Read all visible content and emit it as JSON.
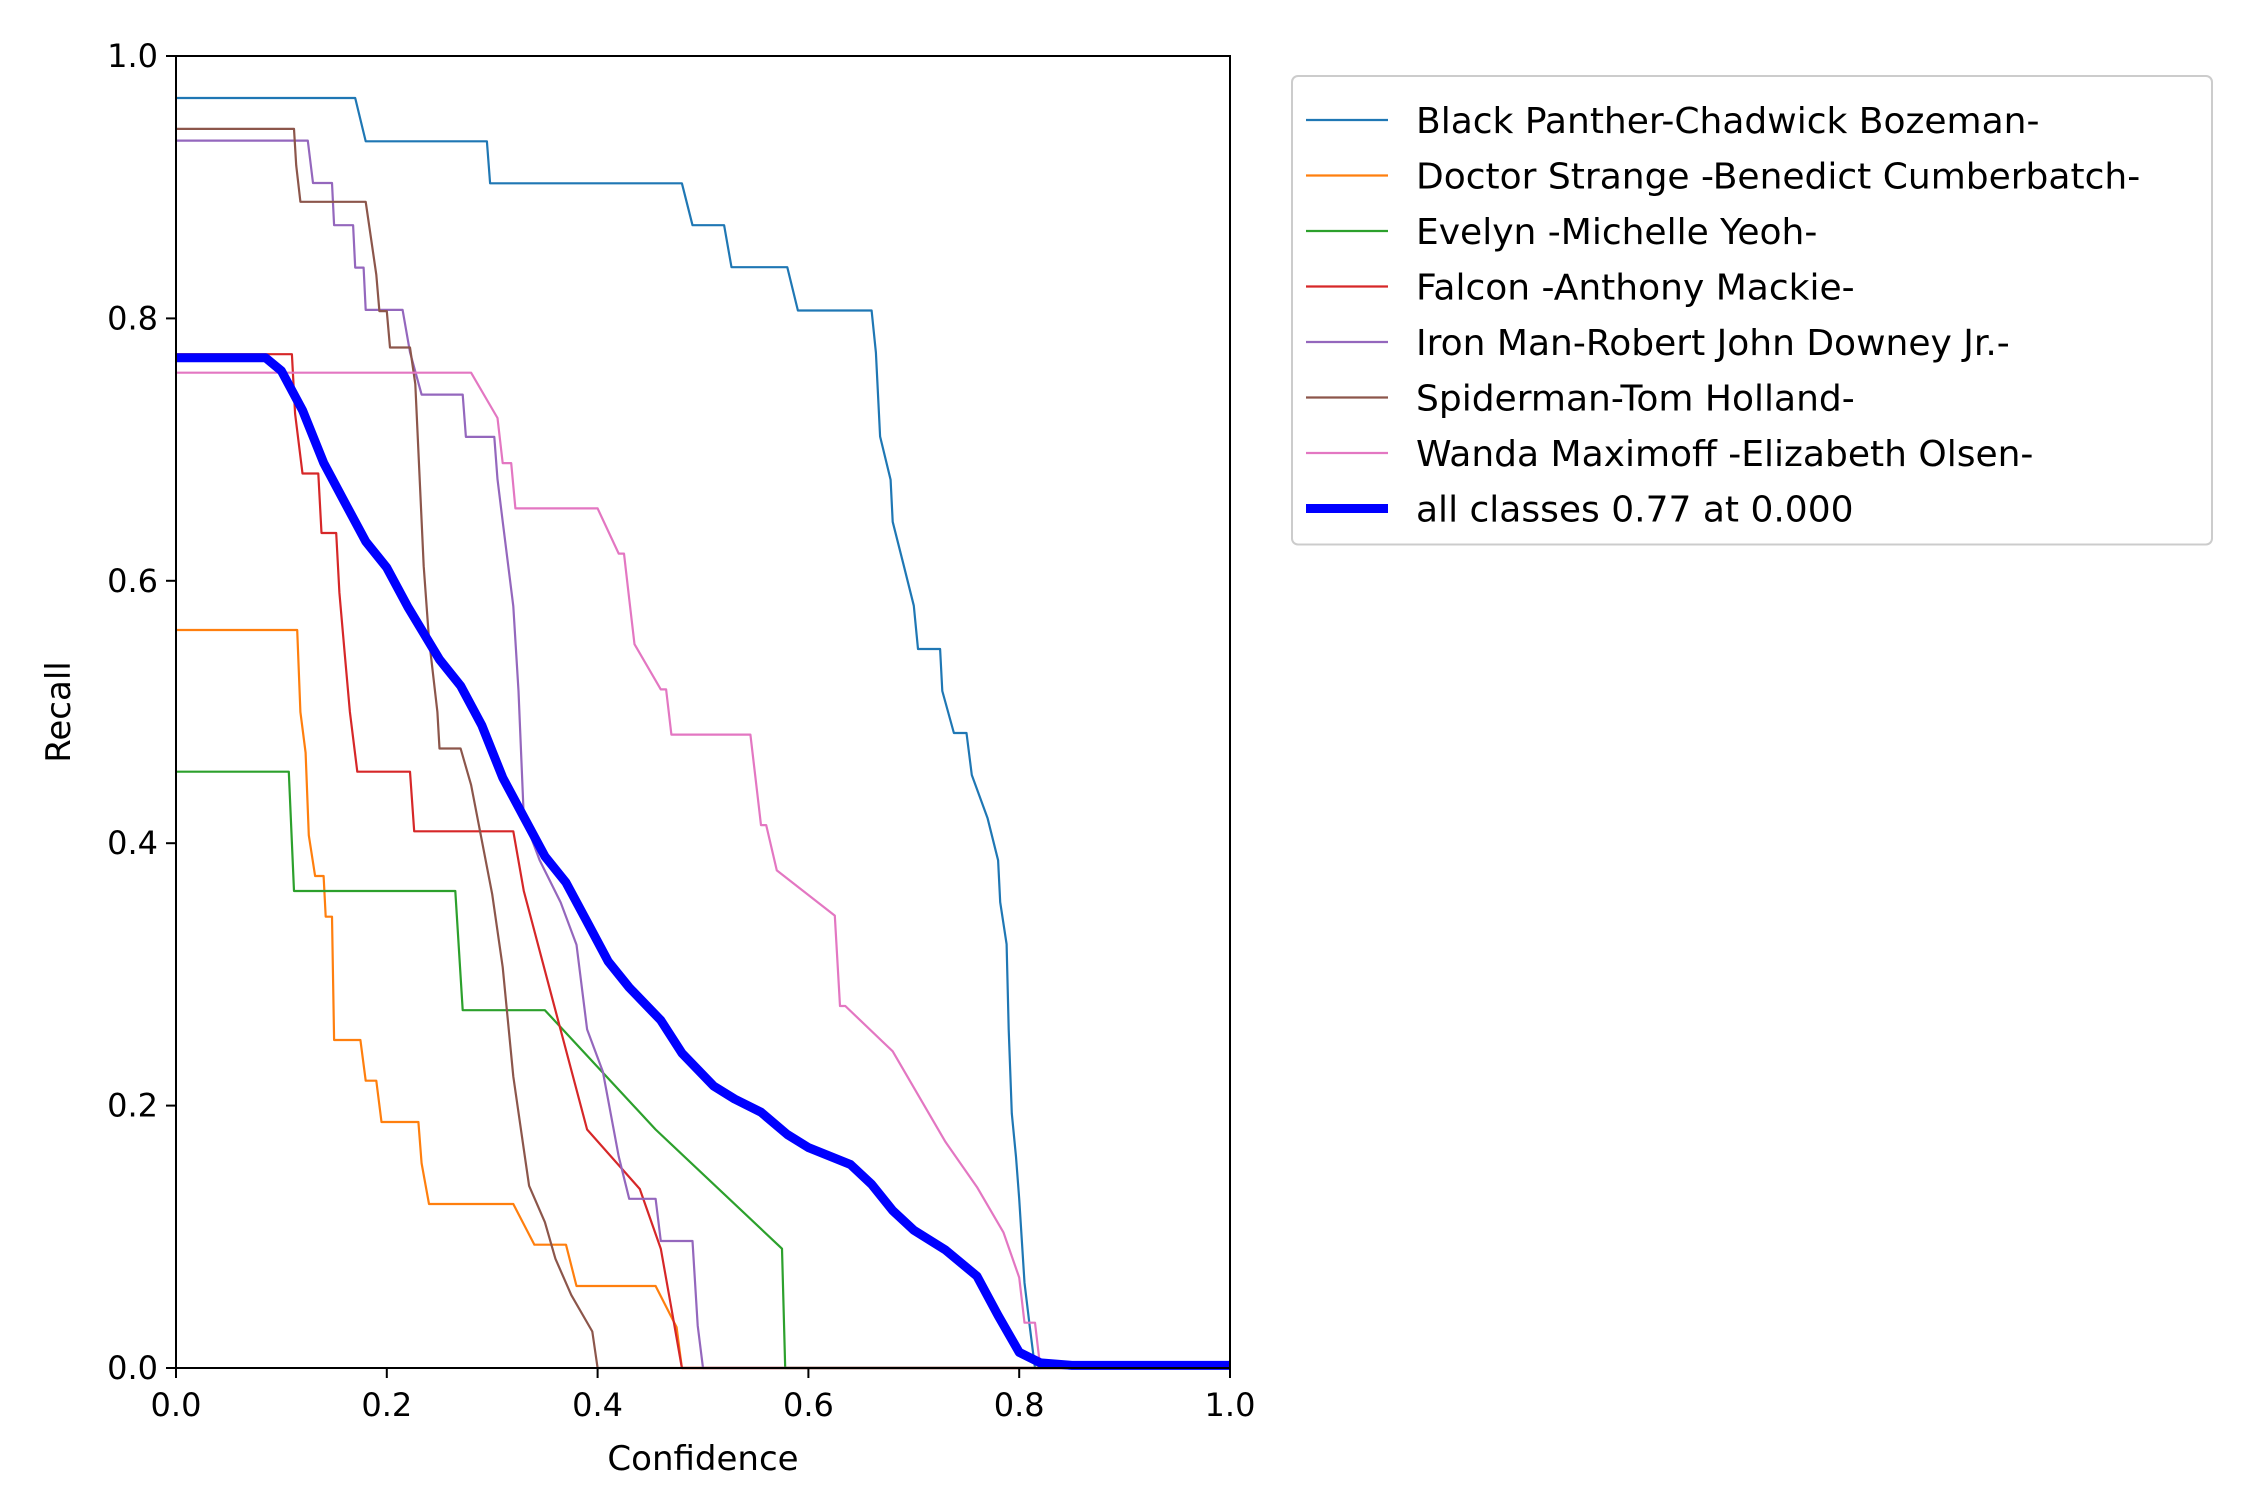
{
  "chart_data": {
    "type": "line",
    "xlabel": "Confidence",
    "ylabel": "Recall",
    "xlim": [
      0,
      1
    ],
    "ylim": [
      0,
      1
    ],
    "xticks": [
      0.0,
      0.2,
      0.4,
      0.6,
      0.8,
      1.0
    ],
    "yticks": [
      0.0,
      0.2,
      0.4,
      0.6,
      0.8,
      1.0
    ],
    "xtick_labels": [
      "0.0",
      "0.2",
      "0.4",
      "0.6",
      "0.8",
      "1.0"
    ],
    "ytick_labels": [
      "0.0",
      "0.2",
      "0.4",
      "0.6",
      "0.8",
      "1.0"
    ],
    "grid": false,
    "legend_position": "outside-top-right",
    "series": [
      {
        "name": "Black Panther-Chadwick Bozeman-",
        "color": "#1f77b4",
        "points": [
          [
            0,
            0.968
          ],
          [
            0.17,
            0.968
          ],
          [
            0.18,
            0.935
          ],
          [
            0.295,
            0.935
          ],
          [
            0.298,
            0.903
          ],
          [
            0.48,
            0.903
          ],
          [
            0.49,
            0.871
          ],
          [
            0.52,
            0.871
          ],
          [
            0.527,
            0.839
          ],
          [
            0.58,
            0.839
          ],
          [
            0.59,
            0.806
          ],
          [
            0.66,
            0.806
          ],
          [
            0.664,
            0.774
          ],
          [
            0.668,
            0.71
          ],
          [
            0.678,
            0.677
          ],
          [
            0.68,
            0.645
          ],
          [
            0.69,
            0.613
          ],
          [
            0.7,
            0.581
          ],
          [
            0.704,
            0.548
          ],
          [
            0.725,
            0.548
          ],
          [
            0.727,
            0.516
          ],
          [
            0.738,
            0.484
          ],
          [
            0.75,
            0.484
          ],
          [
            0.755,
            0.452
          ],
          [
            0.77,
            0.419
          ],
          [
            0.78,
            0.387
          ],
          [
            0.782,
            0.355
          ],
          [
            0.788,
            0.323
          ],
          [
            0.79,
            0.258
          ],
          [
            0.793,
            0.194
          ],
          [
            0.797,
            0.161
          ],
          [
            0.8,
            0.129
          ],
          [
            0.805,
            0.065
          ],
          [
            0.81,
            0.032
          ],
          [
            0.815,
            0
          ],
          [
            1.0,
            0
          ]
        ]
      },
      {
        "name": "Doctor Strange -Benedict Cumberbatch-",
        "color": "#ff7f0e",
        "points": [
          [
            0,
            0.5625
          ],
          [
            0.115,
            0.5625
          ],
          [
            0.118,
            0.5
          ],
          [
            0.123,
            0.469
          ],
          [
            0.126,
            0.406
          ],
          [
            0.132,
            0.375
          ],
          [
            0.14,
            0.375
          ],
          [
            0.142,
            0.344
          ],
          [
            0.148,
            0.344
          ],
          [
            0.15,
            0.25
          ],
          [
            0.175,
            0.25
          ],
          [
            0.18,
            0.219
          ],
          [
            0.19,
            0.219
          ],
          [
            0.195,
            0.1875
          ],
          [
            0.23,
            0.1875
          ],
          [
            0.233,
            0.156
          ],
          [
            0.24,
            0.125
          ],
          [
            0.32,
            0.125
          ],
          [
            0.34,
            0.094
          ],
          [
            0.37,
            0.094
          ],
          [
            0.38,
            0.0625
          ],
          [
            0.455,
            0.0625
          ],
          [
            0.475,
            0.031
          ],
          [
            0.48,
            0
          ],
          [
            1.0,
            0
          ]
        ]
      },
      {
        "name": "Evelyn -Michelle Yeoh-",
        "color": "#2ca02c",
        "points": [
          [
            0,
            0.4545
          ],
          [
            0.107,
            0.4545
          ],
          [
            0.112,
            0.3636
          ],
          [
            0.265,
            0.3636
          ],
          [
            0.272,
            0.2727
          ],
          [
            0.35,
            0.2727
          ],
          [
            0.455,
            0.1818
          ],
          [
            0.575,
            0.0909
          ],
          [
            0.578,
            0
          ],
          [
            1.0,
            0
          ]
        ]
      },
      {
        "name": "Falcon -Anthony Mackie-",
        "color": "#d62728",
        "points": [
          [
            0,
            0.7727
          ],
          [
            0.11,
            0.7727
          ],
          [
            0.113,
            0.7273
          ],
          [
            0.12,
            0.6818
          ],
          [
            0.135,
            0.6818
          ],
          [
            0.138,
            0.6364
          ],
          [
            0.152,
            0.6364
          ],
          [
            0.155,
            0.5909
          ],
          [
            0.16,
            0.5455
          ],
          [
            0.165,
            0.5
          ],
          [
            0.172,
            0.4545
          ],
          [
            0.222,
            0.4545
          ],
          [
            0.226,
            0.4091
          ],
          [
            0.32,
            0.4091
          ],
          [
            0.33,
            0.3636
          ],
          [
            0.36,
            0.2727
          ],
          [
            0.39,
            0.1818
          ],
          [
            0.44,
            0.1364
          ],
          [
            0.46,
            0.0909
          ],
          [
            0.47,
            0.0455
          ],
          [
            0.48,
            0
          ],
          [
            1.0,
            0
          ]
        ]
      },
      {
        "name": "Iron Man-Robert John Downey Jr.-",
        "color": "#9467bd",
        "points": [
          [
            0,
            0.9355
          ],
          [
            0.125,
            0.9355
          ],
          [
            0.13,
            0.9032
          ],
          [
            0.148,
            0.9032
          ],
          [
            0.15,
            0.871
          ],
          [
            0.168,
            0.871
          ],
          [
            0.17,
            0.8387
          ],
          [
            0.178,
            0.8387
          ],
          [
            0.18,
            0.8065
          ],
          [
            0.215,
            0.8065
          ],
          [
            0.222,
            0.7742
          ],
          [
            0.233,
            0.7419
          ],
          [
            0.272,
            0.7419
          ],
          [
            0.275,
            0.7097
          ],
          [
            0.302,
            0.7097
          ],
          [
            0.305,
            0.6774
          ],
          [
            0.31,
            0.6452
          ],
          [
            0.32,
            0.5806
          ],
          [
            0.325,
            0.5161
          ],
          [
            0.33,
            0.4194
          ],
          [
            0.345,
            0.3871
          ],
          [
            0.365,
            0.3548
          ],
          [
            0.38,
            0.3226
          ],
          [
            0.39,
            0.2581
          ],
          [
            0.405,
            0.2258
          ],
          [
            0.42,
            0.1613
          ],
          [
            0.43,
            0.129
          ],
          [
            0.455,
            0.129
          ],
          [
            0.46,
            0.0968
          ],
          [
            0.49,
            0.0968
          ],
          [
            0.495,
            0.0323
          ],
          [
            0.5,
            0
          ],
          [
            1.0,
            0
          ]
        ]
      },
      {
        "name": "Spiderman-Tom Holland-",
        "color": "#8c564b",
        "points": [
          [
            0,
            0.9444
          ],
          [
            0.112,
            0.9444
          ],
          [
            0.114,
            0.9167
          ],
          [
            0.118,
            0.8889
          ],
          [
            0.18,
            0.8889
          ],
          [
            0.185,
            0.8611
          ],
          [
            0.19,
            0.8333
          ],
          [
            0.193,
            0.8056
          ],
          [
            0.2,
            0.8056
          ],
          [
            0.203,
            0.7778
          ],
          [
            0.222,
            0.7778
          ],
          [
            0.227,
            0.75
          ],
          [
            0.235,
            0.6111
          ],
          [
            0.24,
            0.5556
          ],
          [
            0.248,
            0.5
          ],
          [
            0.25,
            0.4722
          ],
          [
            0.27,
            0.4722
          ],
          [
            0.28,
            0.4444
          ],
          [
            0.3,
            0.3611
          ],
          [
            0.31,
            0.3056
          ],
          [
            0.32,
            0.2222
          ],
          [
            0.33,
            0.1667
          ],
          [
            0.335,
            0.1389
          ],
          [
            0.35,
            0.1111
          ],
          [
            0.36,
            0.0833
          ],
          [
            0.375,
            0.0556
          ],
          [
            0.395,
            0.0278
          ],
          [
            0.4,
            0
          ],
          [
            1.0,
            0
          ]
        ]
      },
      {
        "name": "Wanda Maximoff -Elizabeth Olsen-",
        "color": "#e377c2",
        "points": [
          [
            0,
            0.7586
          ],
          [
            0.28,
            0.7586
          ],
          [
            0.305,
            0.7241
          ],
          [
            0.31,
            0.6897
          ],
          [
            0.318,
            0.6897
          ],
          [
            0.322,
            0.6552
          ],
          [
            0.4,
            0.6552
          ],
          [
            0.42,
            0.6207
          ],
          [
            0.425,
            0.6207
          ],
          [
            0.43,
            0.5862
          ],
          [
            0.435,
            0.5517
          ],
          [
            0.46,
            0.5172
          ],
          [
            0.465,
            0.5172
          ],
          [
            0.47,
            0.4828
          ],
          [
            0.545,
            0.4828
          ],
          [
            0.55,
            0.4483
          ],
          [
            0.555,
            0.4138
          ],
          [
            0.56,
            0.4138
          ],
          [
            0.57,
            0.3793
          ],
          [
            0.625,
            0.3448
          ],
          [
            0.63,
            0.2759
          ],
          [
            0.635,
            0.2759
          ],
          [
            0.68,
            0.2414
          ],
          [
            0.73,
            0.1724
          ],
          [
            0.76,
            0.1379
          ],
          [
            0.785,
            0.1034
          ],
          [
            0.8,
            0.069
          ],
          [
            0.805,
            0.0345
          ],
          [
            0.815,
            0.0345
          ],
          [
            0.82,
            0
          ],
          [
            1.0,
            0
          ]
        ]
      },
      {
        "name": "all classes 0.77 at 0.000",
        "color": "#0000ff",
        "thick": true,
        "points": [
          [
            0,
            0.77
          ],
          [
            0.085,
            0.77
          ],
          [
            0.1,
            0.76
          ],
          [
            0.12,
            0.73
          ],
          [
            0.14,
            0.69
          ],
          [
            0.16,
            0.66
          ],
          [
            0.18,
            0.63
          ],
          [
            0.2,
            0.61
          ],
          [
            0.22,
            0.58
          ],
          [
            0.25,
            0.54
          ],
          [
            0.27,
            0.52
          ],
          [
            0.29,
            0.49
          ],
          [
            0.31,
            0.45
          ],
          [
            0.33,
            0.42
          ],
          [
            0.35,
            0.39
          ],
          [
            0.37,
            0.37
          ],
          [
            0.39,
            0.34
          ],
          [
            0.41,
            0.31
          ],
          [
            0.43,
            0.29
          ],
          [
            0.46,
            0.265
          ],
          [
            0.48,
            0.24
          ],
          [
            0.51,
            0.215
          ],
          [
            0.53,
            0.205
          ],
          [
            0.555,
            0.195
          ],
          [
            0.58,
            0.178
          ],
          [
            0.6,
            0.168
          ],
          [
            0.64,
            0.155
          ],
          [
            0.66,
            0.14
          ],
          [
            0.68,
            0.12
          ],
          [
            0.7,
            0.105
          ],
          [
            0.73,
            0.09
          ],
          [
            0.76,
            0.07
          ],
          [
            0.78,
            0.04
          ],
          [
            0.8,
            0.012
          ],
          [
            0.82,
            0.004
          ],
          [
            0.85,
            0.002
          ],
          [
            1.0,
            0.002
          ]
        ]
      }
    ]
  }
}
